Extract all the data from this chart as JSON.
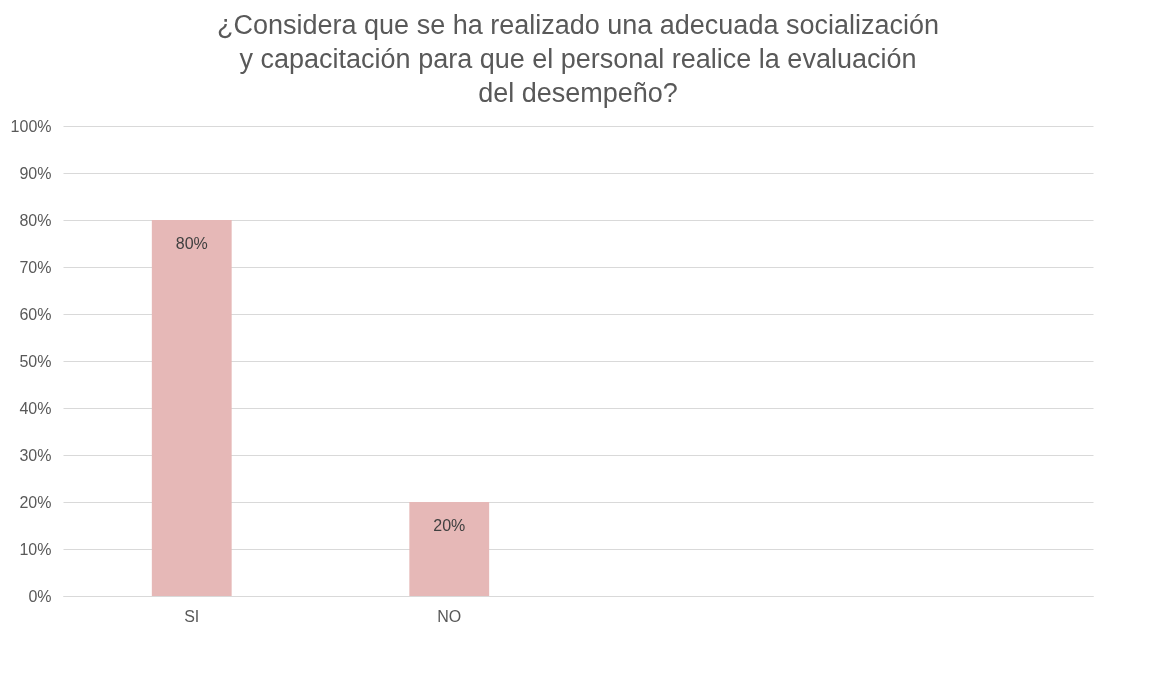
{
  "chart_data": {
    "type": "bar",
    "title": "¿Considera que se ha realizado una adecuada socialización y capacitación para que el personal realice la evaluación del desempeño?",
    "categories": [
      "SI",
      "NO",
      null,
      null
    ],
    "values": [
      80,
      20,
      null,
      null
    ],
    "value_labels": [
      "80%",
      "20%",
      null,
      null
    ],
    "color": "#e6b8b7",
    "ylim": [
      0,
      100
    ],
    "yticks": [
      {
        "value": 0,
        "label": "0%"
      },
      {
        "value": 10,
        "label": "10%"
      },
      {
        "value": 20,
        "label": "20%"
      },
      {
        "value": 30,
        "label": "30%"
      },
      {
        "value": 40,
        "label": "40%"
      },
      {
        "value": 50,
        "label": "50%"
      },
      {
        "value": 60,
        "label": "60%"
      },
      {
        "value": 70,
        "label": "70%"
      },
      {
        "value": 80,
        "label": "80%"
      },
      {
        "value": 90,
        "label": "90%"
      },
      {
        "value": 100,
        "label": "100%"
      }
    ],
    "grid": "y"
  }
}
